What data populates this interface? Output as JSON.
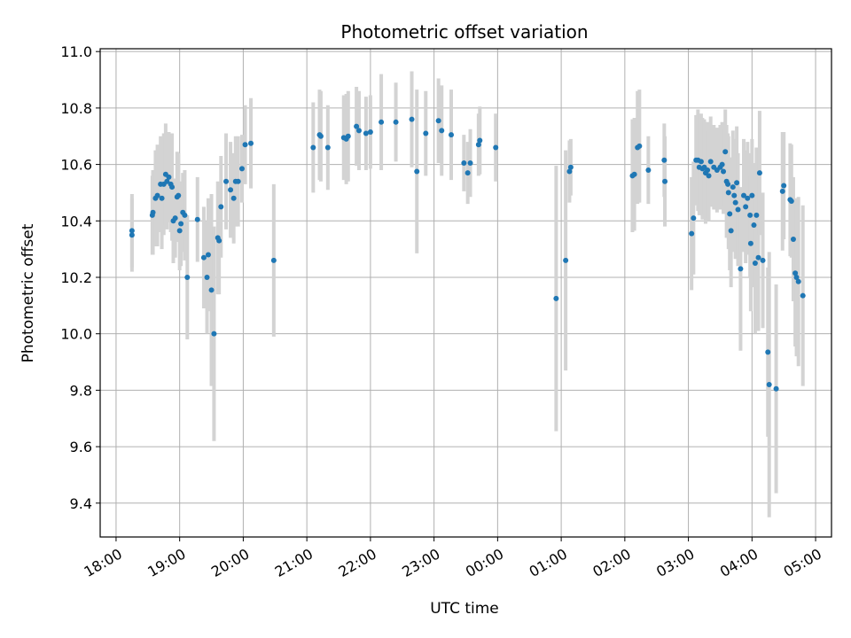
{
  "chart_data": {
    "type": "scatter",
    "title": "Photometric offset variation",
    "xlabel": "UTC time",
    "ylabel": "Photometric offset",
    "x_unit": "hours after 18:00 UTC",
    "xlim": [
      -0.25,
      11.25
    ],
    "ylim": [
      9.28,
      11.01
    ],
    "x_ticks": [
      {
        "value": 0,
        "label": "18:00"
      },
      {
        "value": 1,
        "label": "19:00"
      },
      {
        "value": 2,
        "label": "20:00"
      },
      {
        "value": 3,
        "label": "21:00"
      },
      {
        "value": 4,
        "label": "22:00"
      },
      {
        "value": 5,
        "label": "23:00"
      },
      {
        "value": 6,
        "label": "00:00"
      },
      {
        "value": 7,
        "label": "01:00"
      },
      {
        "value": 8,
        "label": "02:00"
      },
      {
        "value": 9,
        "label": "03:00"
      },
      {
        "value": 10,
        "label": "04:00"
      },
      {
        "value": 11,
        "label": "05:00"
      }
    ],
    "y_ticks": [
      {
        "value": 9.4,
        "label": "9.4"
      },
      {
        "value": 9.6,
        "label": "9.6"
      },
      {
        "value": 9.8,
        "label": "9.8"
      },
      {
        "value": 10.0,
        "label": "10.0"
      },
      {
        "value": 10.2,
        "label": "10.2"
      },
      {
        "value": 10.4,
        "label": "10.4"
      },
      {
        "value": 10.6,
        "label": "10.6"
      },
      {
        "value": 10.8,
        "label": "10.8"
      },
      {
        "value": 11.0,
        "label": "11.0"
      }
    ],
    "grid": true,
    "colors": {
      "marker": "#1f77b4",
      "errorbar": "#d3d3d3",
      "grid": "#b0b0b0",
      "axis": "#000000"
    },
    "points": [
      [
        0.25,
        10.365,
        0.13
      ],
      [
        0.25,
        10.35,
        0.13
      ],
      [
        0.57,
        10.42,
        0.14
      ],
      [
        0.58,
        10.43,
        0.15
      ],
      [
        0.62,
        10.48,
        0.17
      ],
      [
        0.65,
        10.49,
        0.18
      ],
      [
        0.7,
        10.53,
        0.17
      ],
      [
        0.72,
        10.48,
        0.18
      ],
      [
        0.75,
        10.53,
        0.18
      ],
      [
        0.78,
        10.565,
        0.18
      ],
      [
        0.8,
        10.54,
        0.17
      ],
      [
        0.83,
        10.555,
        0.16
      ],
      [
        0.86,
        10.53,
        0.17
      ],
      [
        0.88,
        10.52,
        0.19
      ],
      [
        0.9,
        10.4,
        0.15
      ],
      [
        0.93,
        10.41,
        0.14
      ],
      [
        0.96,
        10.485,
        0.16
      ],
      [
        0.98,
        10.49,
        0.15
      ],
      [
        1.0,
        10.365,
        0.14
      ],
      [
        1.02,
        10.39,
        0.15
      ],
      [
        1.05,
        10.43,
        0.14
      ],
      [
        1.08,
        10.42,
        0.16
      ],
      [
        1.12,
        10.2,
        0.22
      ],
      [
        1.28,
        10.405,
        0.15
      ],
      [
        1.38,
        10.27,
        0.18
      ],
      [
        1.43,
        10.2,
        0.2
      ],
      [
        1.45,
        10.28,
        0.2
      ],
      [
        1.5,
        10.155,
        0.34
      ],
      [
        1.54,
        10.0,
        0.38
      ],
      [
        1.6,
        10.34,
        0.2
      ],
      [
        1.62,
        10.33,
        0.19
      ],
      [
        1.65,
        10.45,
        0.18
      ],
      [
        1.73,
        10.54,
        0.17
      ],
      [
        1.8,
        10.51,
        0.17
      ],
      [
        1.85,
        10.48,
        0.16
      ],
      [
        1.88,
        10.54,
        0.16
      ],
      [
        1.92,
        10.54,
        0.16
      ],
      [
        1.98,
        10.585,
        0.12
      ],
      [
        2.03,
        10.67,
        0.14
      ],
      [
        2.12,
        10.675,
        0.16
      ],
      [
        2.48,
        10.26,
        0.27
      ],
      [
        3.1,
        10.66,
        0.16
      ],
      [
        3.2,
        10.705,
        0.16
      ],
      [
        3.22,
        10.7,
        0.16
      ],
      [
        3.33,
        10.66,
        0.15
      ],
      [
        3.58,
        10.695,
        0.15
      ],
      [
        3.62,
        10.69,
        0.16
      ],
      [
        3.65,
        10.7,
        0.16
      ],
      [
        3.78,
        10.735,
        0.14
      ],
      [
        3.82,
        10.72,
        0.14
      ],
      [
        3.93,
        10.71,
        0.13
      ],
      [
        4.0,
        10.715,
        0.13
      ],
      [
        4.17,
        10.75,
        0.17
      ],
      [
        4.4,
        10.75,
        0.14
      ],
      [
        4.65,
        10.76,
        0.17
      ],
      [
        4.73,
        10.575,
        0.29
      ],
      [
        4.87,
        10.71,
        0.15
      ],
      [
        5.07,
        10.755,
        0.15
      ],
      [
        5.12,
        10.72,
        0.16
      ],
      [
        5.27,
        10.705,
        0.16
      ],
      [
        5.47,
        10.605,
        0.1
      ],
      [
        5.53,
        10.57,
        0.11
      ],
      [
        5.57,
        10.605,
        0.12
      ],
      [
        5.7,
        10.67,
        0.11
      ],
      [
        5.72,
        10.685,
        0.12
      ],
      [
        5.97,
        10.66,
        0.12
      ],
      [
        6.92,
        10.125,
        0.47
      ],
      [
        7.07,
        10.26,
        0.39
      ],
      [
        7.13,
        10.575,
        0.11
      ],
      [
        7.15,
        10.59,
        0.1
      ],
      [
        8.12,
        10.56,
        0.2
      ],
      [
        8.15,
        10.565,
        0.2
      ],
      [
        8.2,
        10.66,
        0.2
      ],
      [
        8.23,
        10.665,
        0.2
      ],
      [
        8.37,
        10.58,
        0.12
      ],
      [
        8.62,
        10.615,
        0.13
      ],
      [
        8.63,
        10.54,
        0.16
      ],
      [
        9.05,
        10.355,
        0.2
      ],
      [
        9.08,
        10.41,
        0.2
      ],
      [
        9.12,
        10.615,
        0.16
      ],
      [
        9.15,
        10.615,
        0.18
      ],
      [
        9.17,
        10.59,
        0.17
      ],
      [
        9.2,
        10.61,
        0.17
      ],
      [
        9.22,
        10.585,
        0.18
      ],
      [
        9.25,
        10.59,
        0.17
      ],
      [
        9.27,
        10.57,
        0.18
      ],
      [
        9.3,
        10.58,
        0.17
      ],
      [
        9.32,
        10.56,
        0.16
      ],
      [
        9.35,
        10.61,
        0.16
      ],
      [
        9.4,
        10.59,
        0.15
      ],
      [
        9.45,
        10.58,
        0.15
      ],
      [
        9.5,
        10.59,
        0.15
      ],
      [
        9.53,
        10.6,
        0.15
      ],
      [
        9.55,
        10.575,
        0.15
      ],
      [
        9.58,
        10.645,
        0.15
      ],
      [
        9.6,
        10.54,
        0.2
      ],
      [
        9.62,
        10.53,
        0.18
      ],
      [
        9.63,
        10.5,
        0.2
      ],
      [
        9.65,
        10.425,
        0.2
      ],
      [
        9.67,
        10.365,
        0.2
      ],
      [
        9.7,
        10.52,
        0.2
      ],
      [
        9.72,
        10.49,
        0.2
      ],
      [
        9.74,
        10.465,
        0.2
      ],
      [
        9.76,
        10.535,
        0.2
      ],
      [
        9.78,
        10.44,
        0.2
      ],
      [
        9.82,
        10.23,
        0.29
      ],
      [
        9.87,
        10.49,
        0.2
      ],
      [
        9.9,
        10.45,
        0.2
      ],
      [
        9.93,
        10.48,
        0.2
      ],
      [
        9.97,
        10.42,
        0.22
      ],
      [
        9.98,
        10.32,
        0.24
      ],
      [
        10.0,
        10.49,
        0.2
      ],
      [
        10.03,
        10.385,
        0.22
      ],
      [
        10.05,
        10.25,
        0.25
      ],
      [
        10.07,
        10.42,
        0.24
      ],
      [
        10.1,
        10.27,
        0.26
      ],
      [
        10.12,
        10.57,
        0.22
      ],
      [
        10.17,
        10.26,
        0.24
      ],
      [
        10.25,
        9.935,
        0.3
      ],
      [
        10.27,
        9.82,
        0.47
      ],
      [
        10.38,
        9.805,
        0.37
      ],
      [
        10.48,
        10.505,
        0.21
      ],
      [
        10.5,
        10.525,
        0.19
      ],
      [
        10.6,
        10.475,
        0.2
      ],
      [
        10.62,
        10.47,
        0.2
      ],
      [
        10.65,
        10.335,
        0.22
      ],
      [
        10.68,
        10.215,
        0.26
      ],
      [
        10.7,
        10.2,
        0.28
      ],
      [
        10.73,
        10.185,
        0.3
      ],
      [
        10.8,
        10.135,
        0.32
      ]
    ]
  }
}
